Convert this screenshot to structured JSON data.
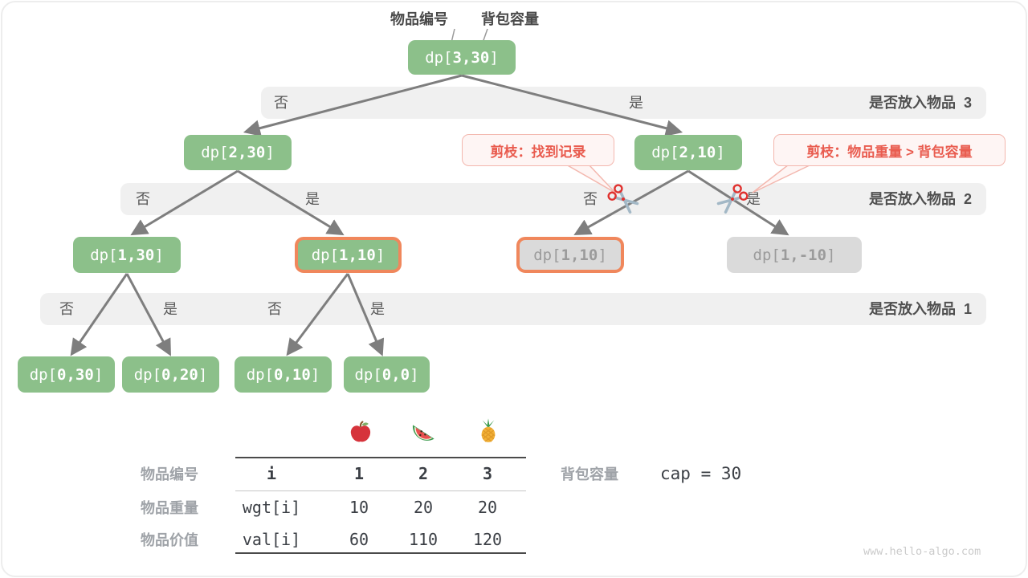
{
  "annotations": {
    "item_label": "物品编号",
    "capacity_label": "背包容量"
  },
  "tree": {
    "nodes": [
      {
        "id": "dp-3-30",
        "label": "dp[3,30]",
        "style": "green"
      },
      {
        "id": "dp-2-30",
        "label": "dp[2,30]",
        "style": "green"
      },
      {
        "id": "dp-2-10",
        "label": "dp[2,10]",
        "style": "green"
      },
      {
        "id": "dp-1-30",
        "label": "dp[1,30]",
        "style": "green"
      },
      {
        "id": "dp-1-10-left",
        "label": "dp[1,10]",
        "style": "green-highlight"
      },
      {
        "id": "dp-1-10-right",
        "label": "dp[1,10]",
        "style": "gray-highlight"
      },
      {
        "id": "dp-1-neg10",
        "label": "dp[1,-10]",
        "style": "gray"
      },
      {
        "id": "dp-0-30",
        "label": "dp[0,30]",
        "style": "green"
      },
      {
        "id": "dp-0-20",
        "label": "dp[0,20]",
        "style": "green"
      },
      {
        "id": "dp-0-10",
        "label": "dp[0,10]",
        "style": "green"
      },
      {
        "id": "dp-0-0",
        "label": "dp[0,0]",
        "style": "green"
      }
    ]
  },
  "bars": [
    {
      "label": "是否放入物品  3",
      "options": [
        "否",
        "是"
      ]
    },
    {
      "label": "是否放入物品  2",
      "options": [
        "否",
        "是",
        "否",
        "是"
      ]
    },
    {
      "label": "是否放入物品  1",
      "options": [
        "否",
        "是",
        "否",
        "是"
      ]
    }
  ],
  "callouts": [
    {
      "text": "剪枝：找到记录"
    },
    {
      "text": "剪枝：物品重量 > 背包容量"
    }
  ],
  "table": {
    "fruits": [
      "apple",
      "watermelon",
      "pineapple"
    ],
    "rows": [
      {
        "label": "物品编号",
        "code": "i",
        "values": [
          "1",
          "2",
          "3"
        ]
      },
      {
        "label": "物品重量",
        "code": "wgt[i]",
        "values": [
          "10",
          "20",
          "20"
        ]
      },
      {
        "label": "物品价值",
        "code": "val[i]",
        "values": [
          "60",
          "110",
          "120"
        ]
      }
    ]
  },
  "capacity": {
    "label": "背包容量",
    "value": "cap = 30"
  },
  "watermark": "www.hello-algo.com",
  "colors": {
    "node_green": "#8cc08a",
    "node_gray": "#dadada",
    "highlight_orange": "#f0875c",
    "prune_red": "#e95c4f",
    "edge_gray": "#7e7e7e",
    "bar_bg": "#f0f0f0"
  }
}
